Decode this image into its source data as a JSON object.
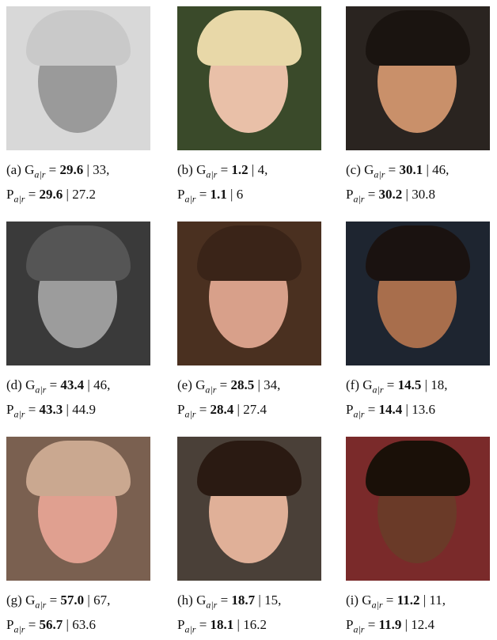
{
  "symbols": {
    "g": "G",
    "p": "P",
    "sub": "a|r",
    "eq": "=",
    "sep": "|",
    "comma": ","
  },
  "panels": [
    {
      "label": "(a)",
      "g": "29.6",
      "g_gt": "33",
      "p": "29.6",
      "p_gt": "27.2"
    },
    {
      "label": "(b)",
      "g": "1.2",
      "g_gt": "4",
      "p": "1.1",
      "p_gt": "6"
    },
    {
      "label": "(c)",
      "g": "30.1",
      "g_gt": "46",
      "p": "30.2",
      "p_gt": "30.8"
    },
    {
      "label": "(d)",
      "g": "43.4",
      "g_gt": "46",
      "p": "43.3",
      "p_gt": "44.9"
    },
    {
      "label": "(e)",
      "g": "28.5",
      "g_gt": "34",
      "p": "28.4",
      "p_gt": "27.4"
    },
    {
      "label": "(f)",
      "g": "14.5",
      "g_gt": "18",
      "p": "14.4",
      "p_gt": "13.6"
    },
    {
      "label": "(g)",
      "g": "57.0",
      "g_gt": "67",
      "p": "56.7",
      "p_gt": "63.6"
    },
    {
      "label": "(h)",
      "g": "18.7",
      "g_gt": "15",
      "p": "18.1",
      "p_gt": "16.2"
    },
    {
      "label": "(i)",
      "g": "11.2",
      "g_gt": "11",
      "p": "11.9",
      "p_gt": "12.4"
    }
  ]
}
